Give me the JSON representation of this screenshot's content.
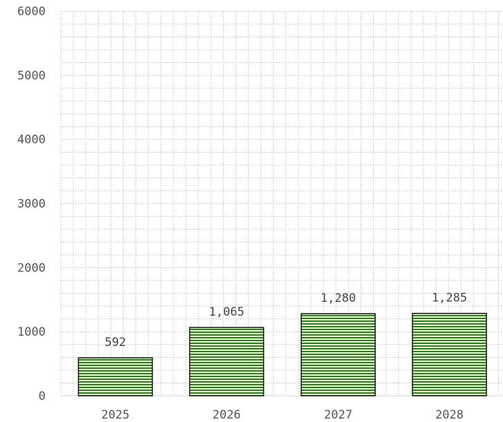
{
  "chart_data": {
    "type": "bar",
    "categories": [
      "2025",
      "2026",
      "2027",
      "2028"
    ],
    "values": [
      592,
      1065,
      1280,
      1285
    ],
    "value_labels": [
      "592",
      "1,065",
      "1,280",
      "1,285"
    ],
    "y_ticks": [
      "0",
      "1000",
      "2000",
      "3000",
      "4000",
      "5000",
      "6000"
    ],
    "ylim": [
      0,
      6000
    ],
    "grid": true,
    "legend": "none",
    "colors": {
      "bar_fill": "#e6f5d6",
      "bar_stripe": "#2e7d1a",
      "bar_edge": "#111111",
      "grid": "#bdbdbd"
    }
  }
}
